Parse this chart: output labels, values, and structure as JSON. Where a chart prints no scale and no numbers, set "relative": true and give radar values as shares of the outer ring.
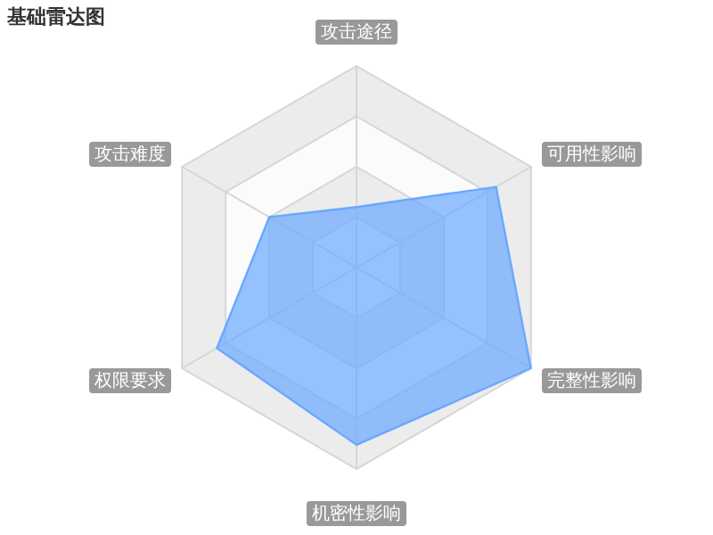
{
  "chart_data": {
    "type": "radar",
    "title": "基础雷达图",
    "relative": true,
    "categories": [
      "攻击途径",
      "可用性影响",
      "完整性影响",
      "机密性影响",
      "权限要求",
      "攻击难度"
    ],
    "series": [
      {
        "color": "#6aa8ff",
        "values": [
          0.3,
          0.8,
          1.0,
          0.88,
          0.8,
          0.5
        ]
      }
    ]
  }
}
